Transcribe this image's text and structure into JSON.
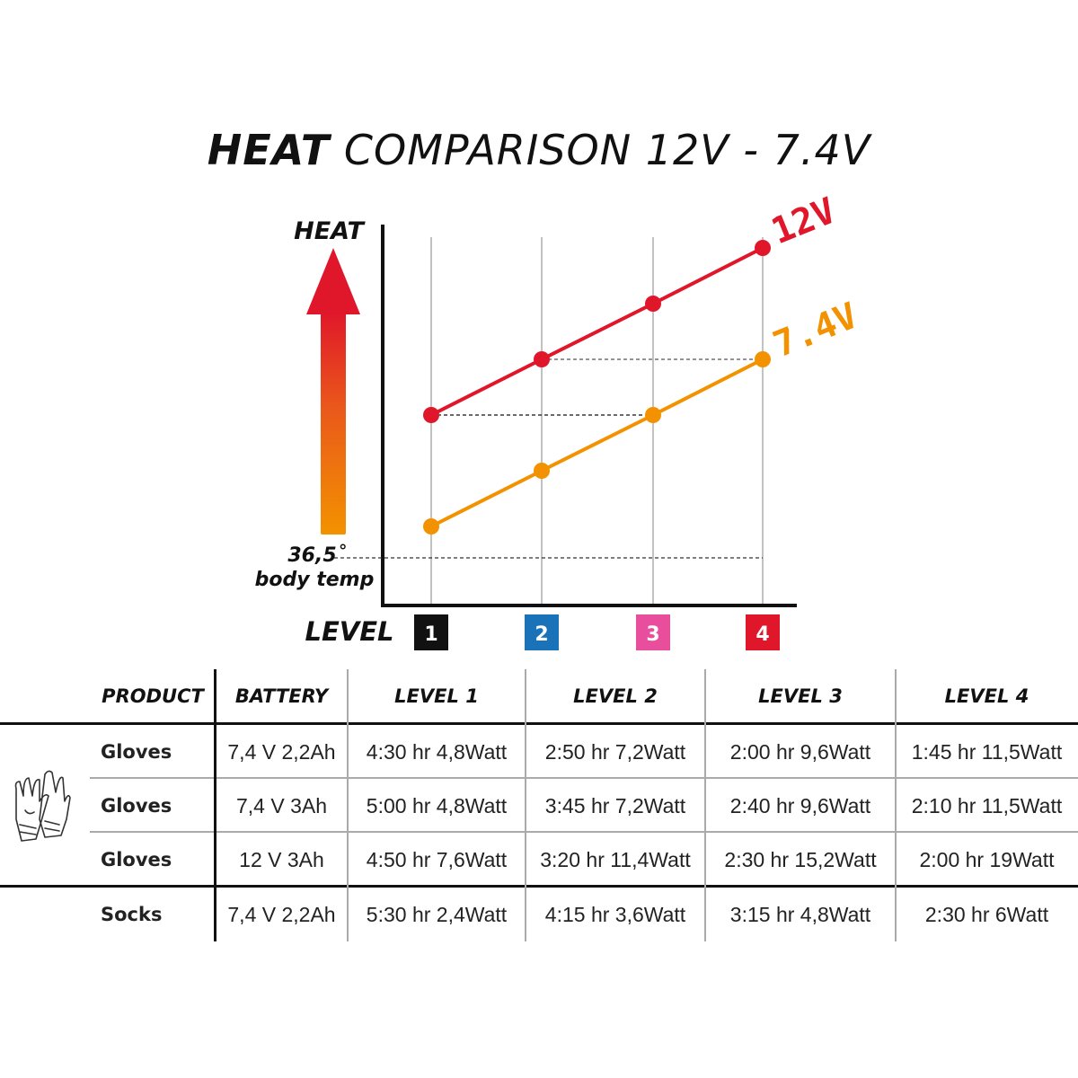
{
  "title": {
    "bold": "HEAT",
    "rest": " COMPARISON 12V - 7.4V"
  },
  "chart_data": {
    "type": "line",
    "x": [
      1,
      2,
      3,
      4
    ],
    "series": [
      {
        "name": "12V",
        "values": [
          3,
          4,
          5,
          6
        ],
        "color": "#e0162b"
      },
      {
        "name": "7.4V",
        "values": [
          1,
          2,
          3,
          4
        ],
        "color": "#f39200"
      }
    ],
    "ylabel": "HEAT",
    "xlabel": "LEVEL",
    "baseline": {
      "value": "36,5˚",
      "label": "body temp"
    },
    "ylim": [
      0,
      6.5
    ],
    "level_labels": [
      {
        "text": "1",
        "color": "#111111"
      },
      {
        "text": "2",
        "color": "#1a72b8"
      },
      {
        "text": "3",
        "color": "#e94e9c"
      },
      {
        "text": "4",
        "color": "#e0162b"
      }
    ]
  },
  "table": {
    "headers": [
      "PRODUCT",
      "BATTERY",
      "LEVEL 1",
      "LEVEL 2",
      "LEVEL 3",
      "LEVEL 4"
    ],
    "rows": [
      [
        "Gloves",
        "7,4 V 2,2Ah",
        "4:30 hr 4,8Watt",
        "2:50 hr 7,2Watt",
        "2:00 hr 9,6Watt",
        "1:45 hr 11,5Watt"
      ],
      [
        "Gloves",
        "7,4 V 3Ah",
        "5:00 hr 4,8Watt",
        "3:45 hr 7,2Watt",
        "2:40 hr 9,6Watt",
        "2:10 hr 11,5Watt"
      ],
      [
        "Gloves",
        "12 V 3Ah",
        "4:50 hr 7,6Watt",
        "3:20 hr 11,4Watt",
        "2:30 hr 15,2Watt",
        "2:00 hr 19Watt"
      ],
      [
        "Socks",
        "7,4 V 2,2Ah",
        "5:30 hr 2,4Watt",
        "4:15 hr 3,6Watt",
        "3:15 hr 4,8Watt",
        "2:30 hr 6Watt"
      ]
    ],
    "icon": "gloves-icon"
  }
}
